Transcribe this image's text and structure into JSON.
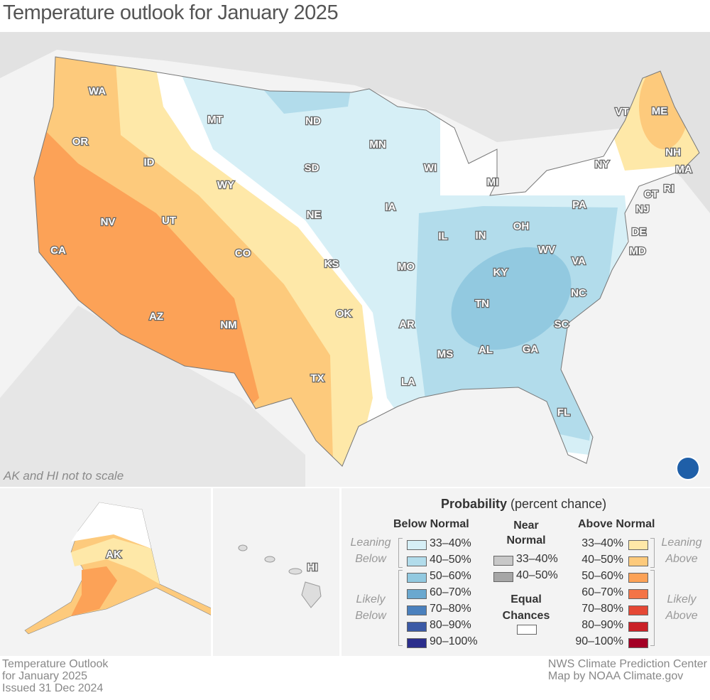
{
  "title": "Temperature outlook for January 2025",
  "map_note": "AK and HI not to scale",
  "states": [
    [
      "WA",
      137,
      128
    ],
    [
      "OR",
      113,
      199
    ],
    [
      "CA",
      82,
      352
    ],
    [
      "NV",
      152,
      312
    ],
    [
      "ID",
      210,
      228
    ],
    [
      "MT",
      303,
      168
    ],
    [
      "WY",
      318,
      260
    ],
    [
      "UT",
      238,
      310
    ],
    [
      "AZ",
      220,
      445
    ],
    [
      "CO",
      342,
      356
    ],
    [
      "NM",
      322,
      457
    ],
    [
      "ND",
      441,
      170
    ],
    [
      "SD",
      439,
      236
    ],
    [
      "NE",
      442,
      302
    ],
    [
      "KS",
      467,
      371
    ],
    [
      "OK",
      484,
      441
    ],
    [
      "TX",
      447,
      532
    ],
    [
      "MN",
      532,
      203
    ],
    [
      "IA",
      550,
      291
    ],
    [
      "MO",
      572,
      375
    ],
    [
      "AR",
      573,
      456
    ],
    [
      "LA",
      575,
      537
    ],
    [
      "WI",
      606,
      236
    ],
    [
      "IL",
      624,
      332
    ],
    [
      "MI",
      694,
      256
    ],
    [
      "IN",
      677,
      331
    ],
    [
      "OH",
      734,
      318
    ],
    [
      "KY",
      705,
      383
    ],
    [
      "TN",
      679,
      427
    ],
    [
      "MS",
      627,
      498
    ],
    [
      "AL",
      684,
      492
    ],
    [
      "GA",
      747,
      491
    ],
    [
      "FL",
      794,
      580
    ],
    [
      "SC",
      791,
      456
    ],
    [
      "NC",
      815,
      412
    ],
    [
      "VA",
      815,
      367
    ],
    [
      "WV",
      770,
      351
    ],
    [
      "PA",
      816,
      288
    ],
    [
      "NY",
      848,
      231
    ],
    [
      "VT",
      876,
      157
    ],
    [
      "NH",
      948,
      214
    ],
    [
      "ME",
      929,
      156
    ],
    [
      "MA",
      963,
      238
    ],
    [
      "RI",
      942,
      265
    ],
    [
      "CT",
      917,
      273
    ],
    [
      "NJ",
      905,
      294
    ],
    [
      "DE",
      900,
      326
    ],
    [
      "MD",
      898,
      353
    ]
  ],
  "inset_labels": {
    "ak": "AK",
    "hi": "HI"
  },
  "legend": {
    "title_bold": "Probability",
    "title_rest": "(percent chance)",
    "below": {
      "heading": "Below Normal",
      "leaning": "Leaning Below",
      "likely": "Likely Below",
      "items": [
        [
          "33–40%",
          "#d6eff6"
        ],
        [
          "40–50%",
          "#b2dceb"
        ],
        [
          "50–60%",
          "#92c9e0"
        ],
        [
          "60–70%",
          "#6aa8cf"
        ],
        [
          "70–80%",
          "#4a80bd"
        ],
        [
          "80–90%",
          "#3b5aa6"
        ],
        [
          "90–100%",
          "#2b2e8c"
        ]
      ]
    },
    "near": {
      "heading": "Near Normal",
      "items": [
        [
          "33–40%",
          "#c8c8c8"
        ],
        [
          "40–50%",
          "#a6a6a6"
        ]
      ]
    },
    "equal": {
      "label": "Equal Chances",
      "color": "#ffffff"
    },
    "above": {
      "heading": "Above Normal",
      "leaning": "Leaning Above",
      "likely": "Likely Above",
      "items": [
        [
          "33–40%",
          "#fee8a8"
        ],
        [
          "40–50%",
          "#fdca7c"
        ],
        [
          "50–60%",
          "#fca257"
        ],
        [
          "60–70%",
          "#f47447"
        ],
        [
          "70–80%",
          "#e54835"
        ],
        [
          "80–90%",
          "#ca2127"
        ],
        [
          "90–100%",
          "#a40025"
        ]
      ]
    }
  },
  "footer_left": [
    "Temperature Outlook",
    "for January 2025",
    "Issued 31 Dec 2024"
  ],
  "footer_right": [
    "NWS Climate Prediction Center",
    "Map by NOAA Climate.gov"
  ],
  "logo": "NOAA"
}
